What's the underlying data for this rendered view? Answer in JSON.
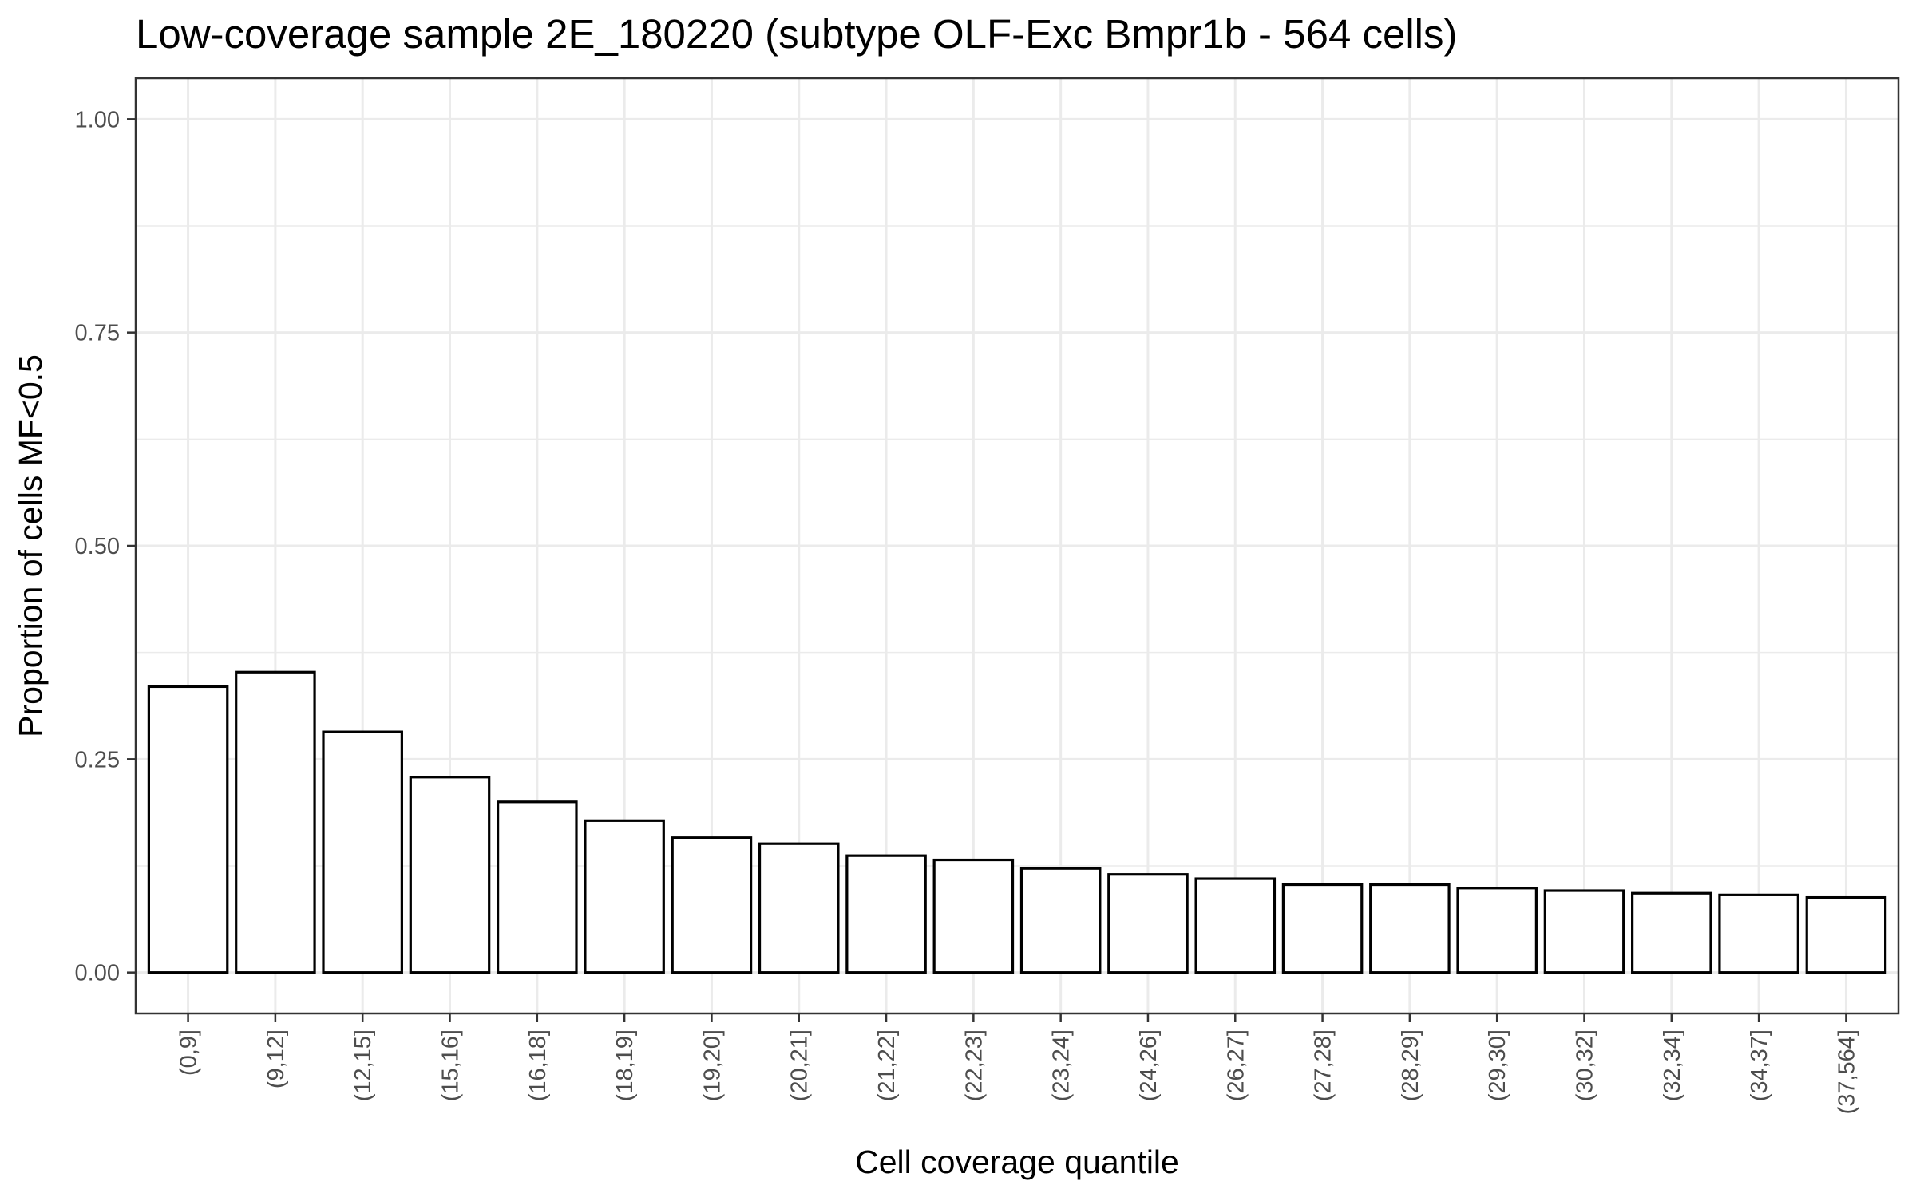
{
  "chart_data": {
    "type": "bar",
    "title": "Low-coverage sample 2E_180220 (subtype OLF-Exc Bmpr1b - 564 cells)",
    "xlabel": "Cell coverage quantile",
    "ylabel": "Proportion of cells MF<0.5",
    "categories": [
      "(0,9]",
      "(9,12]",
      "(12,15]",
      "(15,16]",
      "(16,18]",
      "(18,19]",
      "(19,20]",
      "(20,21]",
      "(21,22]",
      "(22,23]",
      "(23,24]",
      "(24,26]",
      "(26,27]",
      "(27,28]",
      "(28,29]",
      "(29,30]",
      "(30,32]",
      "(32,34]",
      "(34,37]",
      "(37,564]"
    ],
    "values": [
      0.335,
      0.352,
      0.282,
      0.229,
      0.2,
      0.178,
      0.158,
      0.151,
      0.137,
      0.132,
      0.122,
      0.115,
      0.11,
      0.103,
      0.103,
      0.099,
      0.096,
      0.093,
      0.091,
      0.088
    ],
    "ylim": [
      -0.048,
      1.048
    ],
    "yticks": [
      0,
      0.25,
      0.5,
      0.75,
      1.0
    ],
    "ytick_labels": [
      "0.00",
      "0.25",
      "0.50",
      "0.75",
      "1.00"
    ],
    "grid": true,
    "legend": "none"
  }
}
